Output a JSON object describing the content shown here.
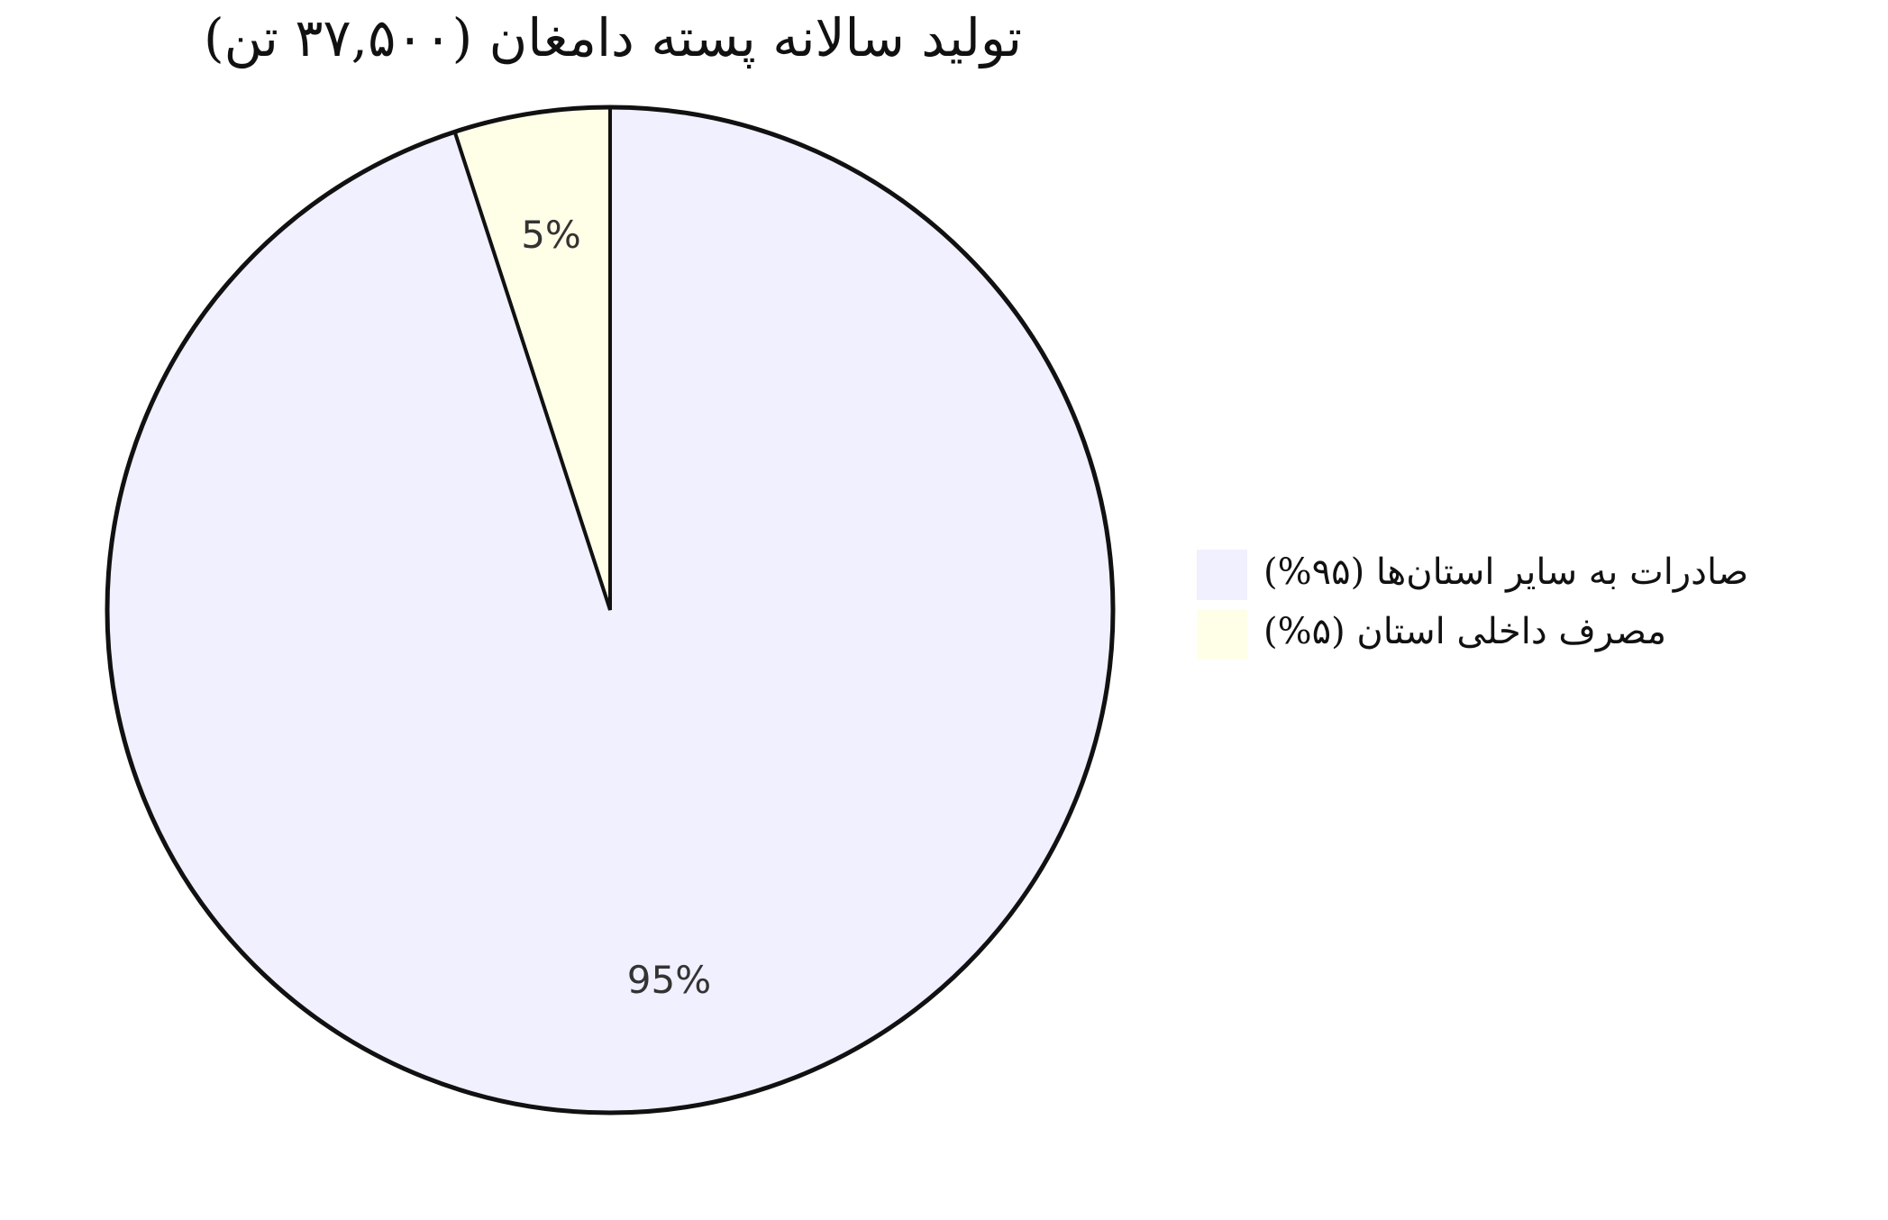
{
  "chart_data": {
    "type": "pie",
    "title": "تولید سالانه پسته دامغان (۳۷,۵۰۰ تن)",
    "categories": [
      "صادرات به سایر استان‌ها (۹۵%)",
      "مصرف داخلی استان (۵%)"
    ],
    "values": [
      95,
      5
    ],
    "value_labels": [
      "95%",
      "5%"
    ],
    "colors": [
      "#f0f0ff",
      "#ffffe8"
    ],
    "slice_stroke": "#111111",
    "start_angle": "top",
    "direction": "counterclockwise",
    "legend": {
      "placement": "right"
    }
  }
}
